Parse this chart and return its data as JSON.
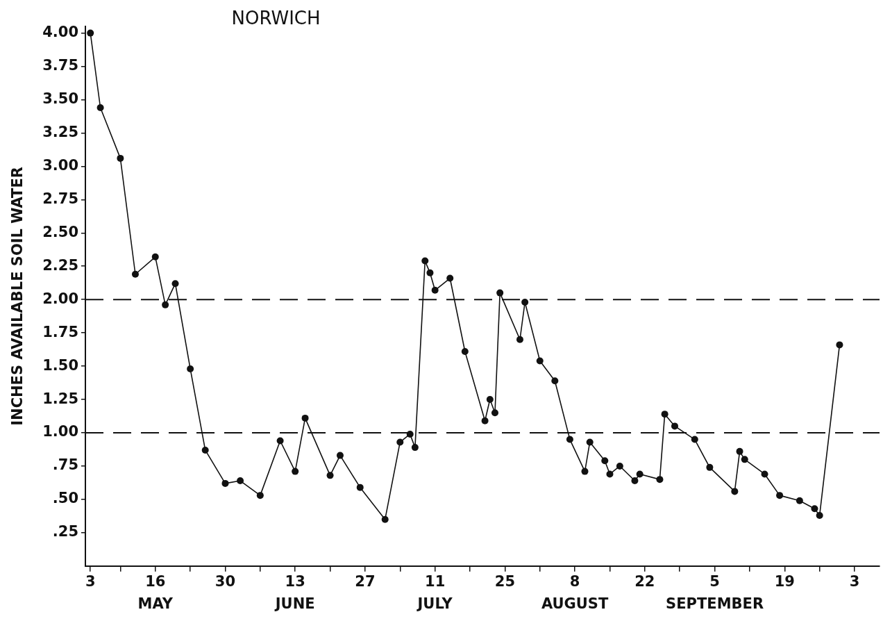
{
  "chart_data": {
    "type": "line",
    "title": "NORWICH",
    "ylabel": "INCHES AVAILABLE SOIL WATER",
    "x": [
      "--05-03",
      "--05-05",
      "--05-09",
      "--05-12",
      "--05-16",
      "--05-18",
      "--05-20",
      "--05-23",
      "--05-26",
      "--05-30",
      "--06-02",
      "--06-06",
      "--06-10",
      "--06-13",
      "--06-15",
      "--06-20",
      "--06-22",
      "--06-26",
      "--07-01",
      "--07-04",
      "--07-06",
      "--07-07",
      "--07-09",
      "--07-10",
      "--07-11",
      "--07-14",
      "--07-17",
      "--07-21",
      "--07-22",
      "--07-23",
      "--07-24",
      "--07-28",
      "--07-29",
      "--08-01",
      "--08-04",
      "--08-07",
      "--08-10",
      "--08-11",
      "--08-14",
      "--08-15",
      "--08-17",
      "--08-20",
      "--08-21",
      "--08-25",
      "--08-26",
      "--08-28",
      "--09-01",
      "--09-04",
      "--09-09",
      "--09-10",
      "--09-11",
      "--09-15",
      "--09-18",
      "--09-22",
      "--09-25",
      "--09-26",
      "--09-30"
    ],
    "series": [
      {
        "color": "#111111",
        "values": [
          4.0,
          3.44,
          3.06,
          2.19,
          2.32,
          1.96,
          2.12,
          1.48,
          0.87,
          0.62,
          0.64,
          0.53,
          0.94,
          0.71,
          1.11,
          0.68,
          0.83,
          0.59,
          0.35,
          0.93,
          0.99,
          0.89,
          2.29,
          2.2,
          2.07,
          2.16,
          1.61,
          1.09,
          1.25,
          1.15,
          2.05,
          1.7,
          1.98,
          1.54,
          1.39,
          0.95,
          0.71,
          0.93,
          0.79,
          0.69,
          0.75,
          0.64,
          0.69,
          0.65,
          1.14,
          1.05,
          0.95,
          0.74,
          0.56,
          0.86,
          0.8,
          0.69,
          0.53,
          0.49,
          0.43,
          0.38,
          1.66
        ]
      }
    ],
    "xlim": [
      "--05-02",
      "--10-08"
    ],
    "xticks": [
      {
        "value": "--05-03",
        "label": "3"
      },
      {
        "value": "--05-09",
        "label": null
      },
      {
        "value": "--05-16",
        "label": "16"
      },
      {
        "value": "--05-23",
        "label": null
      },
      {
        "value": "--05-30",
        "label": "30"
      },
      {
        "value": "--06-06",
        "label": null
      },
      {
        "value": "--06-13",
        "label": "13"
      },
      {
        "value": "--06-20",
        "label": null
      },
      {
        "value": "--06-27",
        "label": "27"
      },
      {
        "value": "--07-04",
        "label": null
      },
      {
        "value": "--07-11",
        "label": "11"
      },
      {
        "value": "--07-18",
        "label": null
      },
      {
        "value": "--07-25",
        "label": "25"
      },
      {
        "value": "--08-01",
        "label": null
      },
      {
        "value": "--08-08",
        "label": "8"
      },
      {
        "value": "--08-15",
        "label": null
      },
      {
        "value": "--08-22",
        "label": "22"
      },
      {
        "value": "--08-29",
        "label": null
      },
      {
        "value": "--09-05",
        "label": "5"
      },
      {
        "value": "--09-12",
        "label": null
      },
      {
        "value": "--09-19",
        "label": "19"
      },
      {
        "value": "--09-26",
        "label": null
      },
      {
        "value": "--10-03",
        "label": "3"
      }
    ],
    "ylim": [
      0,
      4.05
    ],
    "yticks": [
      {
        "value": 0.25,
        "label": ".25"
      },
      {
        "value": 0.5,
        "label": ".50"
      },
      {
        "value": 0.75,
        "label": ".75"
      },
      {
        "value": 1,
        "label": "1.00"
      },
      {
        "value": 1.25,
        "label": "1.25"
      },
      {
        "value": 1.5,
        "label": "1.50"
      },
      {
        "value": 1.75,
        "label": "1.75"
      },
      {
        "value": 2,
        "label": "2.00"
      },
      {
        "value": 2.25,
        "label": "2.25"
      },
      {
        "value": 2.5,
        "label": "2.50"
      },
      {
        "value": 2.75,
        "label": "2.75"
      },
      {
        "value": 3,
        "label": "3.00"
      },
      {
        "value": 3.25,
        "label": "3.25"
      },
      {
        "value": 3.5,
        "label": "3.50"
      },
      {
        "value": 3.75,
        "label": "3.75"
      },
      {
        "value": 4,
        "label": "4.00"
      }
    ],
    "ref_lines": [
      {
        "axis": "y",
        "value": 2,
        "line_style": "dashed",
        "color": "#111111"
      },
      {
        "axis": "y",
        "value": 1,
        "line_style": "dashed",
        "color": "#111111"
      }
    ],
    "annotations": [
      "MAY",
      "JUNE",
      "JULY",
      "AUGUST",
      "SEPTEMBER"
    ],
    "marker": "circle",
    "line_style": "solid",
    "grid": false,
    "legend": false
  }
}
